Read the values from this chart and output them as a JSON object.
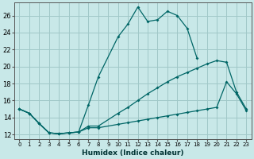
{
  "xlabel": "Humidex (Indice chaleur)",
  "bg_color": "#c8e8e8",
  "grid_color": "#a0c8c8",
  "line_color": "#006666",
  "xlim": [
    -0.5,
    23.5
  ],
  "ylim": [
    11.5,
    27.5
  ],
  "xticks": [
    0,
    1,
    2,
    3,
    4,
    5,
    6,
    7,
    8,
    9,
    10,
    11,
    12,
    13,
    14,
    15,
    16,
    17,
    18,
    19,
    20,
    21,
    22,
    23
  ],
  "yticks": [
    12,
    14,
    16,
    18,
    20,
    22,
    24,
    26
  ],
  "series": [
    {
      "x": [
        0,
        1,
        2,
        3,
        4,
        5,
        6,
        7,
        8,
        10,
        11,
        12,
        13,
        14,
        15,
        16,
        17,
        18
      ],
      "y": [
        15.0,
        14.5,
        13.3,
        12.2,
        12.1,
        12.2,
        12.3,
        15.5,
        18.8,
        23.5,
        25.0,
        27.0,
        25.3,
        25.5,
        26.5,
        26.0,
        24.5,
        21.0
      ]
    },
    {
      "x": [
        0,
        1,
        2,
        3,
        4,
        5,
        6,
        7,
        8,
        10,
        11,
        12,
        13,
        14,
        15,
        16,
        17,
        18,
        19,
        20,
        21,
        22,
        23
      ],
      "y": [
        15.0,
        14.5,
        13.3,
        12.2,
        12.1,
        12.2,
        12.3,
        13.0,
        13.0,
        14.5,
        15.2,
        16.0,
        16.8,
        17.5,
        18.2,
        18.8,
        19.3,
        19.8,
        20.3,
        20.7,
        20.5,
        17.0,
        15.0
      ]
    },
    {
      "x": [
        0,
        1,
        2,
        3,
        4,
        5,
        6,
        7,
        8,
        10,
        11,
        12,
        13,
        14,
        15,
        16,
        17,
        18,
        19,
        20,
        21,
        22,
        23
      ],
      "y": [
        15.0,
        14.5,
        13.3,
        12.2,
        12.1,
        12.2,
        12.3,
        12.8,
        12.8,
        13.2,
        13.4,
        13.6,
        13.8,
        14.0,
        14.2,
        14.4,
        14.6,
        14.8,
        15.0,
        15.2,
        18.2,
        16.8,
        14.8
      ]
    }
  ]
}
